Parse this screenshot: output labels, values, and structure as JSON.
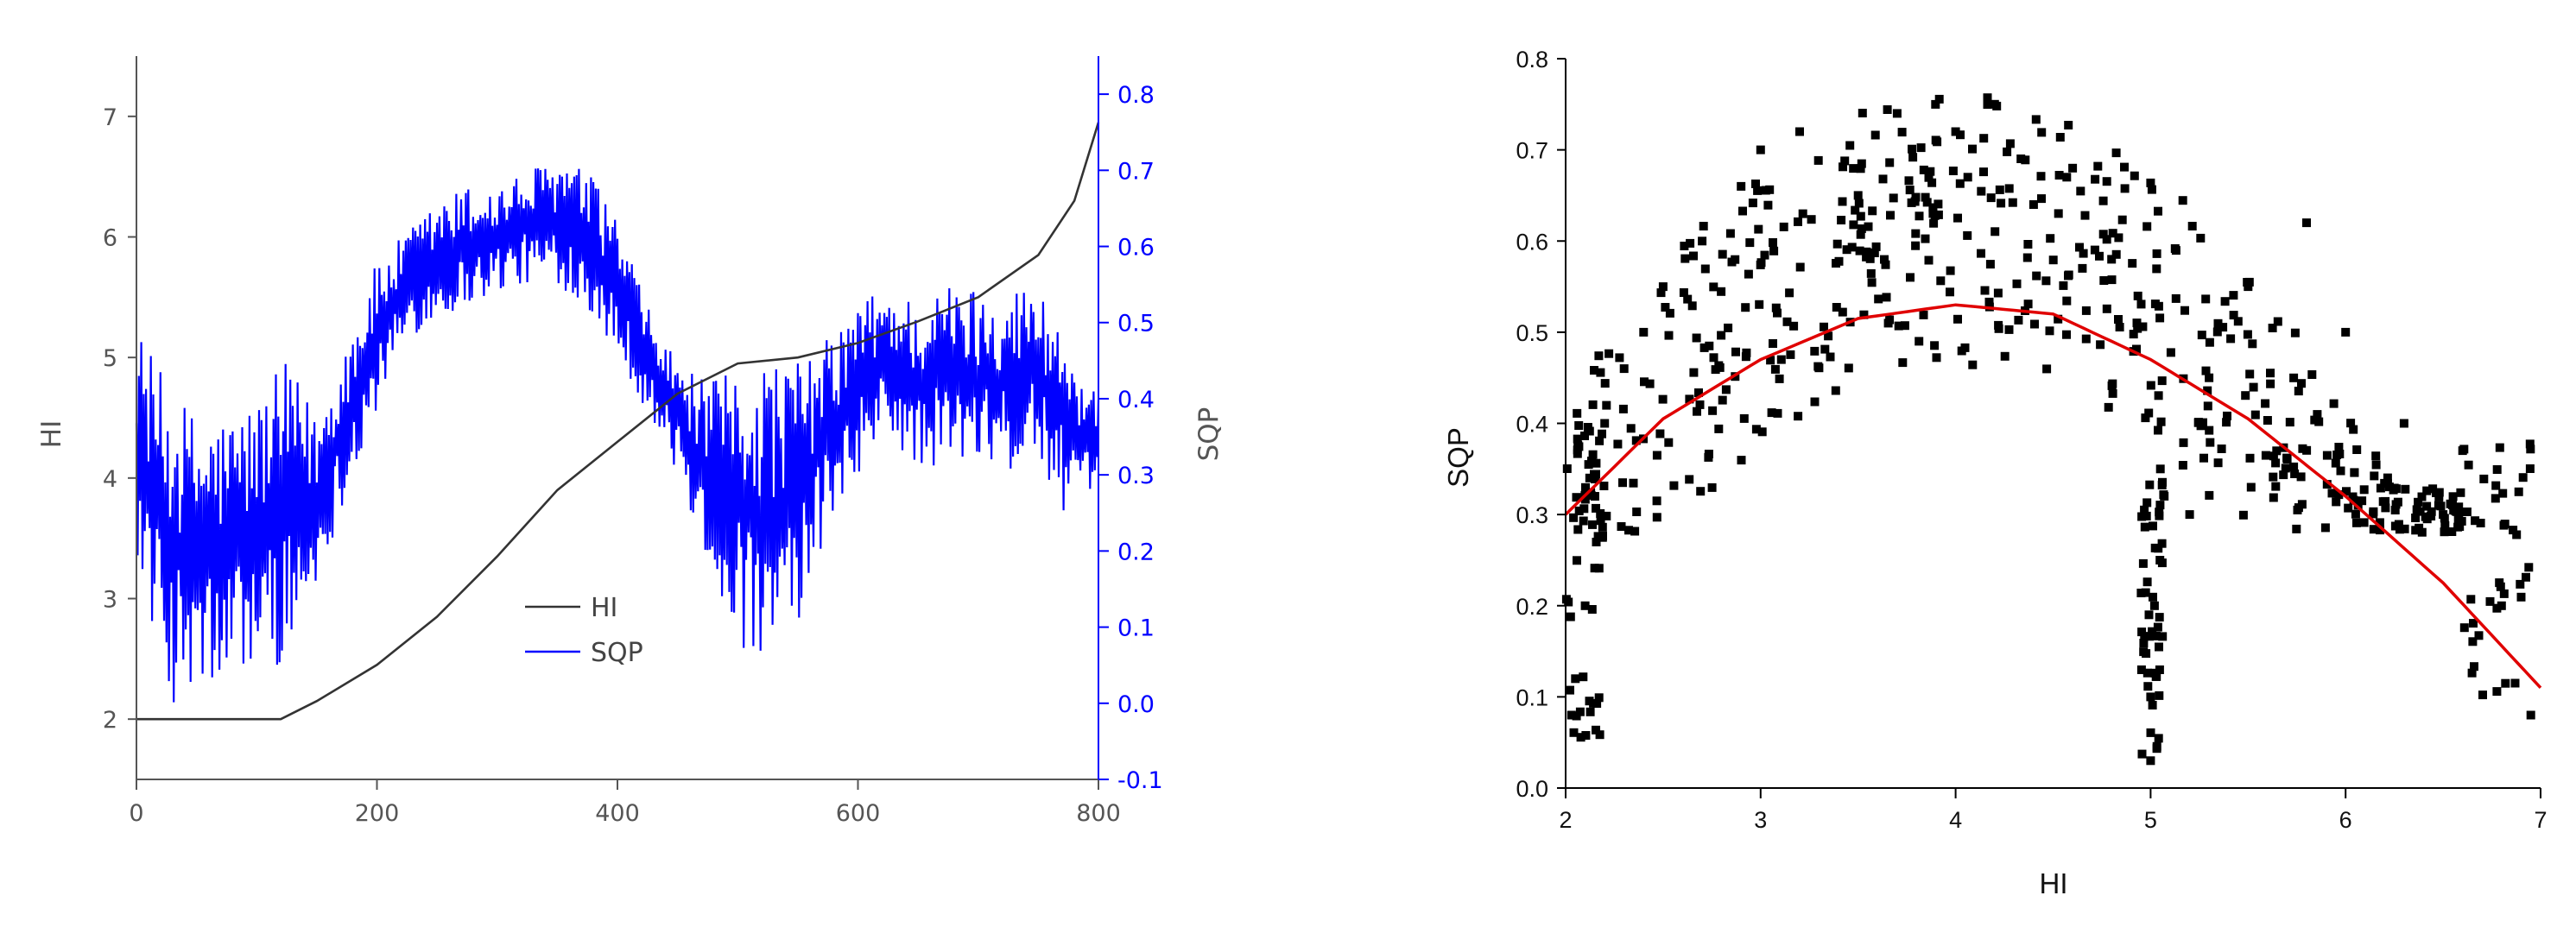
{
  "colors": {
    "hi": "#333333",
    "sqp": "#0000ff",
    "fit": "#e00000",
    "points": "#000000",
    "axis_right_secondary": "#0000ff"
  },
  "chart_data": [
    {
      "type": "line",
      "title": "",
      "xlabel": "",
      "ylabel": "HI",
      "y2label": "SQP",
      "xlim": [
        0,
        800
      ],
      "ylim": [
        1.5,
        7.5
      ],
      "y2lim": [
        -0.1,
        0.85
      ],
      "xticks": [
        "0",
        "200",
        "400",
        "600",
        "800"
      ],
      "yticks": [
        "2",
        "3",
        "4",
        "5",
        "6",
        "7"
      ],
      "y2ticks": [
        "-0.1",
        "0.0",
        "0.1",
        "0.2",
        "0.3",
        "0.4",
        "0.5",
        "0.6",
        "0.7",
        "0.8"
      ],
      "legend_position": "bottom-center",
      "series": [
        {
          "name": "HI",
          "axis": "left",
          "x": [
            0,
            100,
            120,
            150,
            200,
            250,
            300,
            350,
            400,
            450,
            500,
            550,
            600,
            650,
            700,
            750,
            780,
            800
          ],
          "values": [
            2.0,
            2.0,
            2.0,
            2.15,
            2.45,
            2.85,
            3.35,
            3.9,
            4.3,
            4.7,
            4.95,
            5.0,
            5.12,
            5.3,
            5.5,
            5.85,
            6.3,
            6.95
          ]
        },
        {
          "name": "SQP",
          "axis": "right",
          "envelope_x": [
            0,
            25,
            50,
            75,
            100,
            125,
            150,
            175,
            200,
            225,
            250,
            275,
            300,
            325,
            350,
            375,
            400,
            425,
            450,
            475,
            500,
            525,
            550,
            575,
            600,
            625,
            650,
            675,
            700,
            725,
            750,
            775,
            800
          ],
          "envelope_min": [
            0.2,
            0.0,
            0.0,
            0.02,
            0.05,
            0.05,
            0.15,
            0.28,
            0.38,
            0.48,
            0.5,
            0.52,
            0.54,
            0.55,
            0.55,
            0.52,
            0.46,
            0.38,
            0.3,
            0.18,
            0.08,
            0.02,
            0.1,
            0.22,
            0.3,
            0.35,
            0.3,
            0.32,
            0.3,
            0.3,
            0.32,
            0.24,
            0.26
          ],
          "envelope_max": [
            0.5,
            0.42,
            0.38,
            0.38,
            0.4,
            0.45,
            0.38,
            0.48,
            0.58,
            0.62,
            0.66,
            0.68,
            0.68,
            0.7,
            0.72,
            0.7,
            0.64,
            0.52,
            0.45,
            0.42,
            0.44,
            0.46,
            0.45,
            0.48,
            0.53,
            0.55,
            0.53,
            0.55,
            0.55,
            0.55,
            0.55,
            0.48,
            0.4
          ]
        }
      ]
    },
    {
      "type": "scatter",
      "title": "",
      "xlabel": "HI",
      "ylabel": "SQP",
      "xlim": [
        2,
        7
      ],
      "ylim": [
        0.0,
        0.8
      ],
      "xticks": [
        "2",
        "3",
        "4",
        "5",
        "6",
        "7"
      ],
      "yticks": [
        "0.0",
        "0.1",
        "0.2",
        "0.3",
        "0.4",
        "0.5",
        "0.6",
        "0.7",
        "0.8"
      ],
      "fit": {
        "type": "quadratic",
        "x": [
          2,
          2.5,
          3,
          3.5,
          4,
          4.5,
          5,
          5.5,
          6,
          6.5,
          7
        ],
        "y": [
          0.3,
          0.405,
          0.47,
          0.515,
          0.53,
          0.52,
          0.47,
          0.405,
          0.32,
          0.225,
          0.11
        ]
      },
      "point_count": 700,
      "points_sample": [
        [
          2.03,
          0.08
        ],
        [
          2.05,
          0.12
        ],
        [
          2.1,
          0.2
        ],
        [
          2.15,
          0.32
        ],
        [
          2.2,
          0.4
        ],
        [
          2.3,
          0.46
        ],
        [
          2.4,
          0.5
        ],
        [
          2.5,
          0.55
        ],
        [
          2.7,
          0.6
        ],
        [
          2.9,
          0.66
        ],
        [
          3.0,
          0.7
        ],
        [
          3.2,
          0.72
        ],
        [
          3.5,
          0.65
        ],
        [
          3.7,
          0.74
        ],
        [
          4.0,
          0.72
        ],
        [
          4.2,
          0.75
        ],
        [
          4.4,
          0.64
        ],
        [
          4.6,
          0.68
        ],
        [
          4.8,
          0.58
        ],
        [
          5.0,
          0.03
        ],
        [
          5.0,
          0.1
        ],
        [
          5.02,
          0.2
        ],
        [
          5.05,
          0.35
        ],
        [
          5.2,
          0.3
        ],
        [
          5.3,
          0.45
        ],
        [
          5.5,
          0.55
        ],
        [
          5.8,
          0.62
        ],
        [
          6.0,
          0.5
        ],
        [
          6.3,
          0.4
        ],
        [
          6.5,
          0.3
        ],
        [
          6.8,
          0.2
        ],
        [
          6.95,
          0.08
        ]
      ]
    }
  ]
}
